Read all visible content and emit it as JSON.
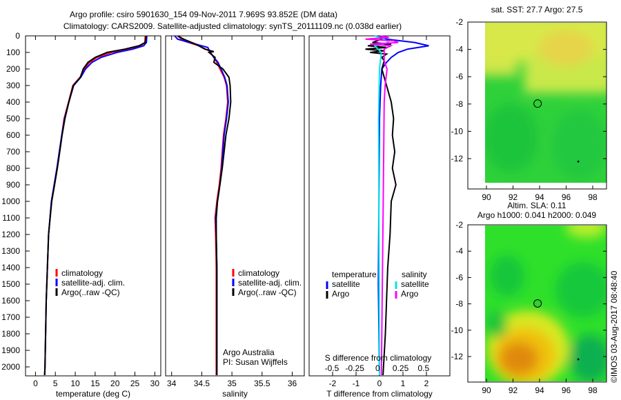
{
  "title_line1": "Argo profile: csiro 5901630_154 09-Nov-2011 7.969S 93.852E (DM data)",
  "title_line2": "Climatology: CARS2009. Satellite-adjusted climatology: synTS_20111109.nc (0.038d earlier)",
  "credit": "©IMOS 03-Aug-2017 08:48:40",
  "chart_data": [
    {
      "type": "line",
      "id": "temperature",
      "xlabel": "temperature (deg C)",
      "xlim": [
        -2.5,
        31.5
      ],
      "ylim": [
        0,
        2050
      ],
      "xticks": [
        0,
        5,
        10,
        15,
        20,
        25,
        30
      ],
      "yticks": [
        0,
        100,
        200,
        300,
        400,
        500,
        600,
        700,
        800,
        900,
        1000,
        1100,
        1200,
        1300,
        1400,
        1500,
        1600,
        1700,
        1800,
        1900,
        2000
      ],
      "legend": [
        "climatology",
        "satellite-adj. clim.",
        "Argo(..raw -QC)"
      ],
      "series": [
        {
          "name": "climatology",
          "color": "#ff0000",
          "points": [
            [
              0,
              27.6
            ],
            [
              40,
              27.5
            ],
            [
              60,
              26.5
            ],
            [
              80,
              23
            ],
            [
              100,
              19
            ],
            [
              130,
              15.5
            ],
            [
              160,
              13.6
            ],
            [
              200,
              12.2
            ],
            [
              250,
              11.2
            ],
            [
              300,
              9.4
            ],
            [
              400,
              8.3
            ],
            [
              500,
              7.2
            ],
            [
              600,
              6.6
            ],
            [
              700,
              6.0
            ],
            [
              800,
              5.4
            ],
            [
              900,
              4.7
            ],
            [
              1000,
              4.0
            ],
            [
              1200,
              3.3
            ],
            [
              1400,
              3.0
            ],
            [
              1600,
              2.7
            ],
            [
              2000,
              2.4
            ],
            [
              2050,
              2.3
            ]
          ]
        },
        {
          "name": "satellite-adj. clim.",
          "color": "#0000ff",
          "points": [
            [
              0,
              28.0
            ],
            [
              40,
              27.9
            ],
            [
              60,
              27.2
            ],
            [
              80,
              24.5
            ],
            [
              100,
              20.5
            ],
            [
              130,
              16.5
            ],
            [
              160,
              14.2
            ],
            [
              200,
              12.6
            ],
            [
              250,
              11.4
            ],
            [
              300,
              9.6
            ],
            [
              400,
              8.4
            ],
            [
              500,
              7.3
            ],
            [
              600,
              6.6
            ],
            [
              700,
              6.0
            ],
            [
              800,
              5.4
            ],
            [
              900,
              4.7
            ],
            [
              1000,
              4.0
            ],
            [
              1200,
              3.3
            ],
            [
              1400,
              3.0
            ],
            [
              1600,
              2.7
            ],
            [
              2000,
              2.4
            ],
            [
              2050,
              2.3
            ]
          ]
        },
        {
          "name": "Argo(..raw -QC)",
          "color": "#000000",
          "points": [
            [
              0,
              27.8
            ],
            [
              40,
              27.6
            ],
            [
              60,
              26.0
            ],
            [
              80,
              22.5
            ],
            [
              100,
              18.0
            ],
            [
              130,
              15.0
            ],
            [
              160,
              13.2
            ],
            [
              200,
              12.0
            ],
            [
              250,
              11.3
            ],
            [
              300,
              9.5
            ],
            [
              400,
              8.4
            ],
            [
              500,
              7.4
            ],
            [
              600,
              6.7
            ],
            [
              700,
              6.1
            ],
            [
              800,
              5.5
            ],
            [
              900,
              4.8
            ],
            [
              1000,
              4.1
            ],
            [
              1200,
              3.3
            ],
            [
              1400,
              3.0
            ],
            [
              1600,
              2.7
            ],
            [
              2000,
              2.4
            ],
            [
              2050,
              2.3
            ]
          ]
        }
      ]
    },
    {
      "type": "line",
      "id": "salinity",
      "xlabel": "salinity",
      "xlim": [
        33.9,
        36.2
      ],
      "ylim": [
        0,
        2050
      ],
      "xticks": [
        34,
        34.5,
        35,
        35.5,
        36
      ],
      "legend": [
        "climatology",
        "satellite-adj. clim.",
        "Argo(..raw -QC)"
      ],
      "annotation": [
        "Argo Australia",
        "PI: Susan Wijffels"
      ],
      "series": [
        {
          "name": "climatology",
          "color": "#ff0000",
          "points": [
            [
              0,
              34.1
            ],
            [
              30,
              34.2
            ],
            [
              60,
              34.45
            ],
            [
              90,
              34.62
            ],
            [
              120,
              34.68
            ],
            [
              160,
              34.75
            ],
            [
              200,
              34.8
            ],
            [
              250,
              34.87
            ],
            [
              300,
              34.91
            ],
            [
              400,
              34.93
            ],
            [
              500,
              34.9
            ],
            [
              600,
              34.86
            ],
            [
              700,
              34.84
            ],
            [
              800,
              34.82
            ],
            [
              900,
              34.79
            ],
            [
              1000,
              34.75
            ],
            [
              1100,
              34.72
            ],
            [
              1200,
              34.73
            ],
            [
              1400,
              34.74
            ],
            [
              2050,
              34.74
            ]
          ]
        },
        {
          "name": "satellite-adj. clim.",
          "color": "#0000ff",
          "points": [
            [
              0,
              34.05
            ],
            [
              20,
              34.1
            ],
            [
              40,
              34.3
            ],
            [
              70,
              34.6
            ],
            [
              100,
              34.64
            ],
            [
              130,
              34.7
            ],
            [
              160,
              34.77
            ],
            [
              200,
              34.82
            ],
            [
              250,
              34.88
            ],
            [
              300,
              34.92
            ],
            [
              400,
              34.94
            ],
            [
              500,
              34.91
            ],
            [
              600,
              34.87
            ],
            [
              700,
              34.85
            ],
            [
              800,
              34.83
            ],
            [
              900,
              34.8
            ],
            [
              1000,
              34.76
            ],
            [
              1100,
              34.73
            ],
            [
              1200,
              34.74
            ],
            [
              1400,
              34.75
            ],
            [
              2050,
              34.75
            ]
          ]
        },
        {
          "name": "Argo(..raw -QC)",
          "color": "#000000",
          "points": [
            [
              0,
              34.1
            ],
            [
              20,
              34.2
            ],
            [
              50,
              34.4
            ],
            [
              80,
              34.55
            ],
            [
              95,
              34.7
            ],
            [
              100,
              34.62
            ],
            [
              130,
              34.72
            ],
            [
              160,
              34.7
            ],
            [
              200,
              34.85
            ],
            [
              250,
              34.95
            ],
            [
              300,
              34.97
            ],
            [
              400,
              34.98
            ],
            [
              500,
              34.95
            ],
            [
              600,
              34.9
            ],
            [
              700,
              34.87
            ],
            [
              800,
              34.84
            ],
            [
              900,
              34.8
            ],
            [
              1000,
              34.76
            ],
            [
              1100,
              34.74
            ],
            [
              1200,
              34.74
            ],
            [
              1400,
              34.75
            ],
            [
              2050,
              34.75
            ]
          ]
        }
      ]
    },
    {
      "type": "line",
      "id": "differences",
      "xlabel": "T difference from climatology",
      "x2label": "S difference from climatology",
      "xlim": [
        -3,
        3
      ],
      "ylim": [
        0,
        2050
      ],
      "xticks": [
        -2,
        -1,
        0,
        1,
        2
      ],
      "x2ticks": [
        "-0.5",
        "-0.25",
        "0",
        "0.25",
        "0.5"
      ],
      "legend": {
        "temperature_title": "temperature",
        "salinity_title": "salinity",
        "t_items": [
          "satellite",
          "Argo"
        ],
        "s_items": [
          "satellite",
          "Argo"
        ]
      },
      "series": [
        {
          "name": "T satellite",
          "color": "#0000ff",
          "scale": 1,
          "points": [
            [
              0,
              0
            ],
            [
              20,
              0.3
            ],
            [
              40,
              1.5
            ],
            [
              60,
              2.1
            ],
            [
              80,
              1.2
            ],
            [
              100,
              0.8
            ],
            [
              130,
              0.5
            ],
            [
              160,
              0.3
            ],
            [
              200,
              0.1
            ],
            [
              300,
              0.05
            ],
            [
              500,
              0
            ],
            [
              1500,
              -0.05
            ],
            [
              2050,
              0
            ]
          ]
        },
        {
          "name": "T Argo",
          "color": "#000000",
          "scale": 1,
          "points": [
            [
              0,
              0
            ],
            [
              20,
              0.1
            ],
            [
              40,
              -0.3
            ],
            [
              50,
              0.5
            ],
            [
              60,
              -0.5
            ],
            [
              70,
              0.3
            ],
            [
              80,
              -0.6
            ],
            [
              90,
              0.2
            ],
            [
              100,
              -0.4
            ],
            [
              110,
              0.3
            ],
            [
              130,
              0.1
            ],
            [
              150,
              0.2
            ],
            [
              200,
              0.1
            ],
            [
              300,
              0.3
            ],
            [
              400,
              0.5
            ],
            [
              500,
              0.6
            ],
            [
              600,
              0.55
            ],
            [
              700,
              0.65
            ],
            [
              800,
              0.55
            ],
            [
              900,
              0.7
            ],
            [
              1000,
              0.5
            ],
            [
              1200,
              0.45
            ],
            [
              1400,
              0.35
            ],
            [
              1600,
              0.3
            ],
            [
              1800,
              0.25
            ],
            [
              2050,
              0.15
            ]
          ]
        },
        {
          "name": "S satellite",
          "color": "#00e5e5",
          "scale": 4,
          "points": [
            [
              0,
              -0.05
            ],
            [
              20,
              0.05
            ],
            [
              40,
              0.1
            ],
            [
              60,
              -0.05
            ],
            [
              100,
              0.02
            ],
            [
              200,
              0
            ],
            [
              500,
              -0.01
            ],
            [
              2050,
              0
            ]
          ]
        },
        {
          "name": "S Argo",
          "color": "#ff00ff",
          "scale": 4,
          "points": [
            [
              0,
              0
            ],
            [
              10,
              0.1
            ],
            [
              20,
              -0.15
            ],
            [
              30,
              0.15
            ],
            [
              40,
              0.2
            ],
            [
              50,
              -0.1
            ],
            [
              60,
              0.12
            ],
            [
              80,
              0.05
            ],
            [
              150,
              0.05
            ],
            [
              200,
              0.08
            ],
            [
              300,
              0.06
            ],
            [
              400,
              0.05
            ],
            [
              1000,
              0.04
            ],
            [
              2050,
              0.02
            ]
          ]
        }
      ]
    },
    {
      "type": "heatmap",
      "id": "sst-map",
      "title": "sat. SST: 27.7  Argo: 27.5",
      "xlim": [
        89,
        99
      ],
      "ylim": [
        -13.8,
        -2
      ],
      "xticks": [
        90,
        92,
        94,
        96,
        98
      ],
      "yticks": [
        -2,
        -4,
        -6,
        -8,
        -10,
        -12
      ],
      "float_position": [
        93.852,
        -7.969
      ],
      "marker": [
        96.9,
        -12.2
      ]
    },
    {
      "type": "heatmap",
      "id": "sla-map",
      "title": "Altim. SLA: 0.11",
      "subtitle": "Argo h1000: 0.041  h2000: 0.049",
      "xlim": [
        89,
        99
      ],
      "ylim": [
        -13.8,
        -2
      ],
      "xticks": [
        90,
        92,
        94,
        96,
        98
      ],
      "yticks": [
        -2,
        -4,
        -6,
        -8,
        -10,
        -12
      ],
      "float_position": [
        93.852,
        -7.969
      ],
      "marker": [
        96.9,
        -12.2
      ]
    }
  ]
}
